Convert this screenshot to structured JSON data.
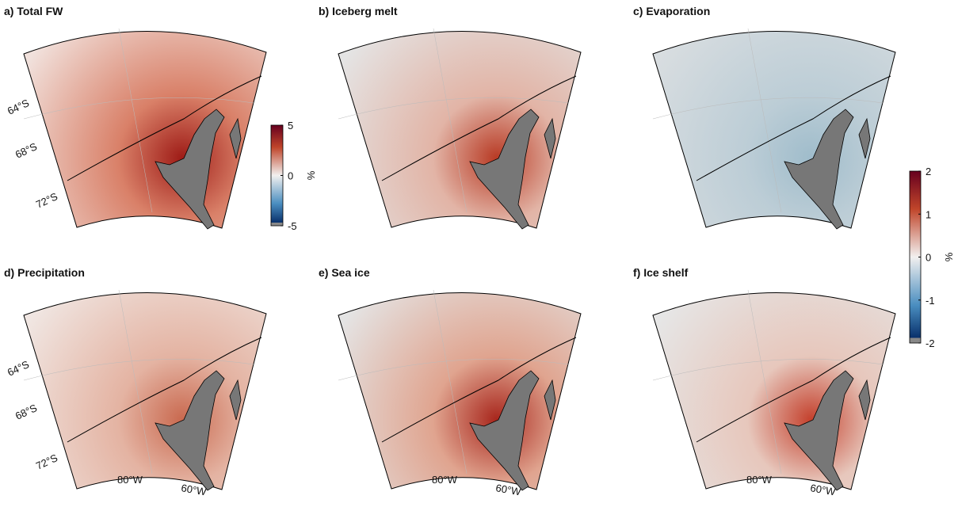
{
  "panels": [
    {
      "title": "a) Total FW"
    },
    {
      "title": "b) Iceberg melt"
    },
    {
      "title": "c) Evaporation"
    },
    {
      "title": "d) Precipitation"
    },
    {
      "title": "e) Sea ice"
    },
    {
      "title": "f) Ice shelf"
    }
  ],
  "lat_labels": [
    "64°S",
    "68°S",
    "72°S"
  ],
  "lon_labels": [
    "80°W",
    "60°W"
  ],
  "colorbars": [
    {
      "label": "%",
      "lim": [
        -5,
        5
      ],
      "ticks": [
        5,
        0,
        -5
      ]
    },
    {
      "label": "%",
      "lim": [
        -2,
        2
      ],
      "ticks": [
        2,
        1,
        0,
        -1,
        -2
      ]
    }
  ]
}
